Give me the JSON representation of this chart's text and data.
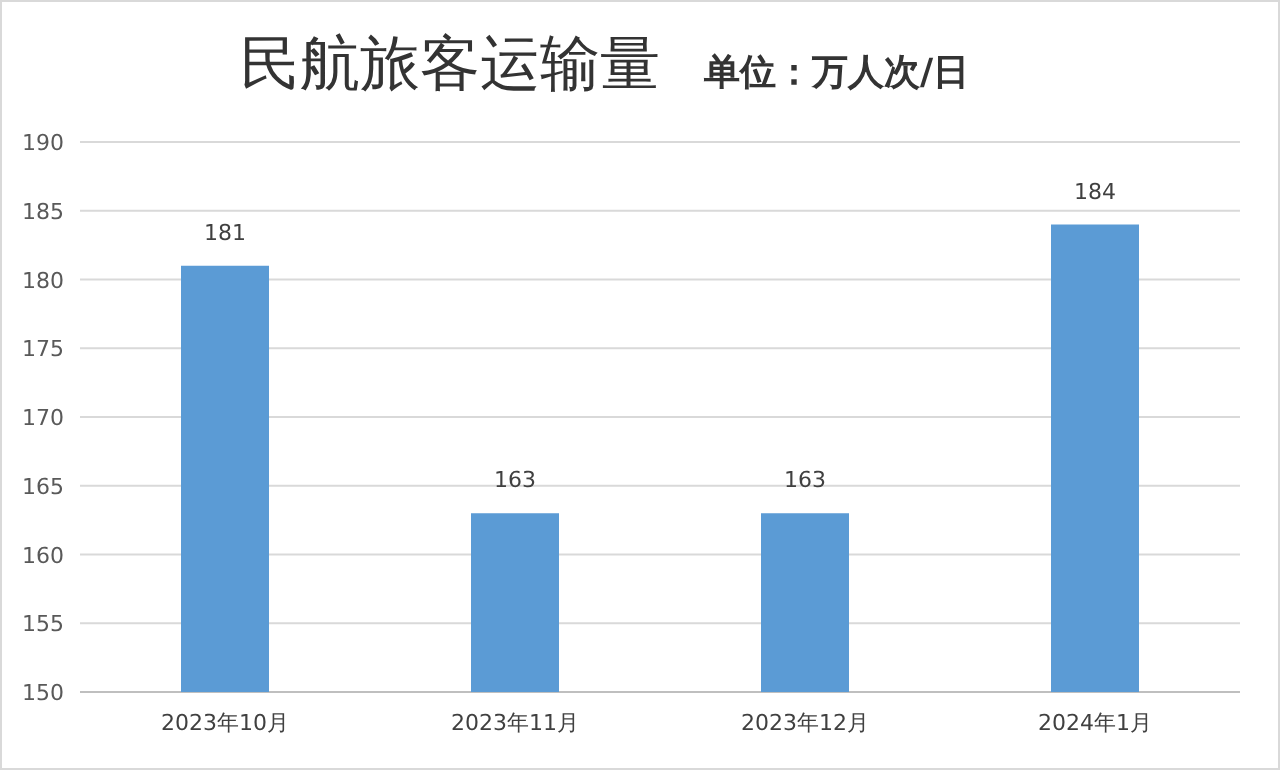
{
  "chart_data": {
    "type": "bar",
    "title": "民航旅客运输量",
    "subtitle": "单位：万人次/日",
    "categories": [
      "2023年10月",
      "2023年11月",
      "2023年12月",
      "2024年1月"
    ],
    "values": [
      181,
      163,
      163,
      184
    ],
    "color": "#5b9bd5",
    "ylim": [
      150,
      190
    ],
    "yticks": [
      150,
      155,
      160,
      165,
      170,
      175,
      180,
      185,
      190
    ],
    "grid": "y",
    "data_labels": true
  }
}
